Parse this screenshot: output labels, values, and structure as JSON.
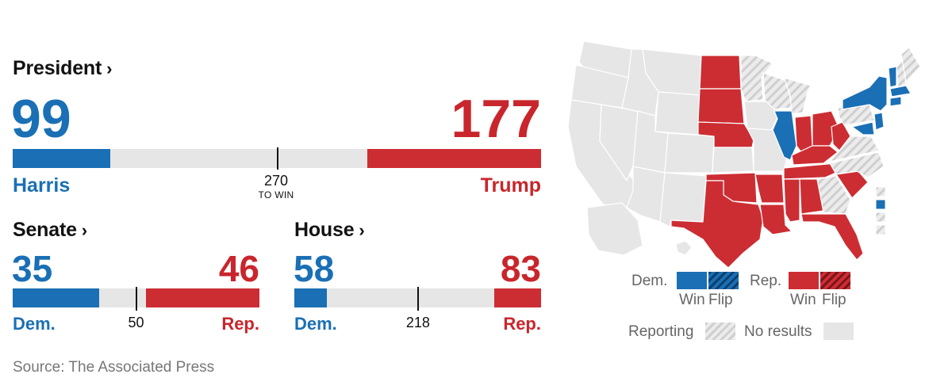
{
  "president": {
    "heading": "President",
    "dem_count": "99",
    "rep_count": "177",
    "dem_name": "Harris",
    "rep_name": "Trump",
    "threshold": "270",
    "threshold_sub": "TO WIN",
    "dem_value": 99,
    "rep_value": 177,
    "total": 538,
    "threshold_value": 270
  },
  "senate": {
    "heading": "Senate",
    "dem_count": "35",
    "rep_count": "46",
    "dem_label": "Dem.",
    "rep_label": "Rep.",
    "threshold": "50",
    "dem_value": 35,
    "rep_value": 46,
    "total": 100,
    "threshold_value": 50
  },
  "house": {
    "heading": "House",
    "dem_count": "58",
    "rep_count": "83",
    "dem_label": "Dem.",
    "rep_label": "Rep.",
    "threshold": "218",
    "dem_value": 58,
    "rep_value": 83,
    "total": 435,
    "threshold_value": 218
  },
  "source": "Source: The Associated Press",
  "legend": {
    "dem": "Dem.",
    "rep": "Rep.",
    "win": "Win",
    "flip": "Flip",
    "reporting": "Reporting",
    "no_results": "No results"
  },
  "colors": {
    "dem": "#1a6fb5",
    "rep": "#cc2d33",
    "no_results": "#e6e6e6",
    "reporting_hatch": "#cfcfcf"
  },
  "chart_data": [
    {
      "type": "bar",
      "title": "President",
      "categories": [
        "Harris",
        "Trump"
      ],
      "values": [
        99,
        177
      ],
      "threshold": 270,
      "total": 538
    },
    {
      "type": "bar",
      "title": "Senate",
      "categories": [
        "Dem.",
        "Rep."
      ],
      "values": [
        35,
        46
      ],
      "threshold": 50,
      "total": 100
    },
    {
      "type": "bar",
      "title": "House",
      "categories": [
        "Dem.",
        "Rep."
      ],
      "values": [
        58,
        83
      ],
      "threshold": 218,
      "total": 435
    }
  ]
}
